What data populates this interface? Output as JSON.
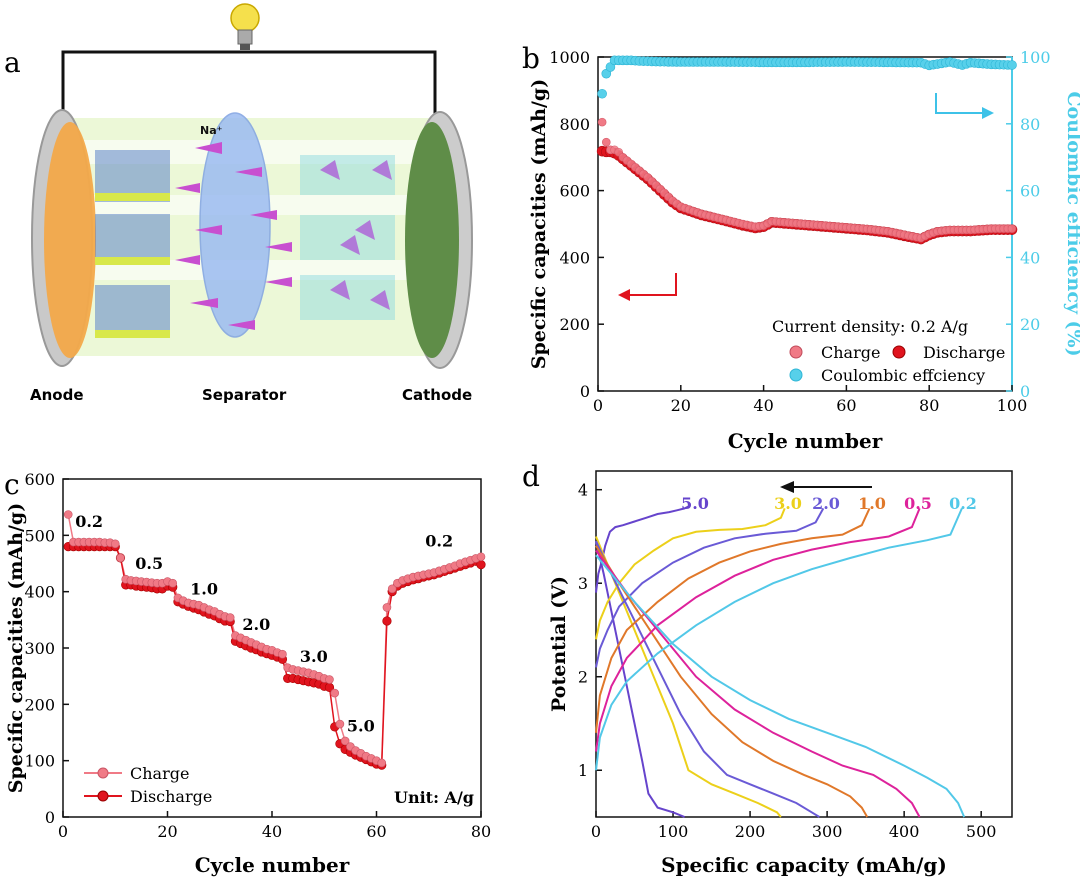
{
  "colors": {
    "charge": "#f07a86",
    "discharge": "#e0141e",
    "ce": "#57d0ea",
    "ce_axis": "#4ccce8",
    "arrow_red": "#e0141e",
    "arrow_cyan": "#3dc2e8",
    "curve_5.0": "#6644cc",
    "curve_3.0": "#ecd01a",
    "curve_2.0": "#6a5ad6",
    "curve_1.0": "#e0782a",
    "curve_0.5": "#dd229b",
    "curve_0.2": "#52c8e8"
  },
  "panel_a": {
    "label": "a",
    "anode_label": "Anode",
    "separator_label": "Separator",
    "cathode_label": "Cathode",
    "ion_label": "Na⁺",
    "icons": [
      "light-bulb-icon"
    ]
  },
  "chart_data": [
    {
      "panel": "b",
      "type": "scatter",
      "title": "",
      "xlabel": "Cycle number",
      "ylabel": "Specific capacities (mAh/g)",
      "y2label": "Coulombic efficiency (%)",
      "xlim": [
        0,
        100
      ],
      "ylim": [
        0,
        1000
      ],
      "y2lim": [
        0,
        100
      ],
      "xticks": [
        0,
        20,
        40,
        60,
        80,
        100
      ],
      "yticks": [
        0,
        200,
        400,
        600,
        800,
        1000
      ],
      "y2ticks": [
        0,
        20,
        40,
        60,
        80,
        100
      ],
      "annotation": "Current density: 0.2 A/g",
      "legend": [
        "Charge",
        "Discharge",
        "Coulombic effciency"
      ],
      "legend_position": "bottom-right",
      "series": [
        {
          "name": "Charge",
          "axis": "left",
          "x": [
            1,
            2,
            3,
            4,
            5,
            6,
            8,
            10,
            12,
            15,
            18,
            20,
            25,
            30,
            35,
            38,
            40,
            42,
            45,
            50,
            55,
            60,
            65,
            70,
            75,
            78,
            80,
            82,
            85,
            90,
            95,
            100
          ],
          "values": [
            805,
            745,
            722,
            722,
            715,
            700,
            680,
            660,
            640,
            605,
            570,
            552,
            530,
            515,
            500,
            492,
            495,
            508,
            505,
            500,
            495,
            490,
            485,
            478,
            465,
            458,
            470,
            478,
            482,
            482,
            486,
            486
          ]
        },
        {
          "name": "Discharge",
          "axis": "left",
          "x": [
            1,
            2,
            3,
            4,
            5,
            6,
            8,
            10,
            12,
            15,
            18,
            20,
            25,
            30,
            35,
            38,
            40,
            42,
            45,
            50,
            55,
            60,
            65,
            70,
            75,
            78,
            80,
            82,
            85,
            90,
            95,
            100
          ],
          "values": [
            718,
            716,
            716,
            712,
            705,
            695,
            675,
            655,
            635,
            600,
            565,
            548,
            527,
            512,
            496,
            488,
            492,
            505,
            502,
            497,
            492,
            487,
            482,
            475,
            462,
            455,
            467,
            475,
            479,
            479,
            483,
            483
          ]
        },
        {
          "name": "Coulombic effciency",
          "axis": "right",
          "x": [
            1,
            2,
            3,
            4,
            5,
            6,
            8,
            10,
            15,
            20,
            30,
            40,
            50,
            60,
            70,
            78,
            80,
            85,
            88,
            90,
            95,
            100
          ],
          "values": [
            89,
            95,
            97,
            99,
            99,
            99,
            99,
            98.8,
            98.6,
            98.5,
            98.5,
            98.4,
            98.4,
            98.5,
            98.4,
            98.3,
            97.5,
            98.5,
            97.6,
            98.3,
            97.8,
            97.6
          ]
        }
      ]
    },
    {
      "panel": "c",
      "type": "line",
      "title": "",
      "xlabel": "Cycle number",
      "ylabel": "Specific capacities (mAh/g)",
      "xlim": [
        0,
        80
      ],
      "ylim": [
        0,
        600
      ],
      "xticks": [
        0,
        20,
        40,
        60,
        80
      ],
      "yticks": [
        0,
        100,
        200,
        300,
        400,
        500,
        600
      ],
      "annotation": "Unit: A/g",
      "rate_labels": [
        {
          "text": "0.2",
          "x": 5,
          "y": 515
        },
        {
          "text": "0.5",
          "x": 16.5,
          "y": 440
        },
        {
          "text": "1.0",
          "x": 27,
          "y": 395
        },
        {
          "text": "2.0",
          "x": 37,
          "y": 332
        },
        {
          "text": "3.0",
          "x": 48,
          "y": 275
        },
        {
          "text": "5.0",
          "x": 57,
          "y": 152
        },
        {
          "text": "0.2",
          "x": 72,
          "y": 480
        }
      ],
      "legend": [
        "Charge",
        "Discharge"
      ],
      "legend_position": "bottom-left",
      "series": [
        {
          "name": "Charge",
          "x": [
            1,
            2,
            3,
            4,
            5,
            6,
            7,
            8,
            9,
            10,
            11,
            12,
            13,
            14,
            15,
            16,
            17,
            18,
            19,
            20,
            21,
            22,
            23,
            24,
            25,
            26,
            27,
            28,
            29,
            30,
            31,
            32,
            33,
            34,
            35,
            36,
            37,
            38,
            39,
            40,
            41,
            42,
            43,
            44,
            45,
            46,
            47,
            48,
            49,
            50,
            51,
            52,
            53,
            54,
            55,
            56,
            57,
            58,
            59,
            60,
            61,
            62,
            63,
            64,
            65,
            66,
            67,
            68,
            69,
            70,
            71,
            72,
            73,
            74,
            75,
            76,
            77,
            78,
            79,
            80
          ],
          "values": [
            537,
            488,
            488,
            488,
            488,
            488,
            488,
            487,
            487,
            485,
            460,
            422,
            420,
            419,
            418,
            417,
            416,
            415,
            415,
            418,
            415,
            389,
            384,
            380,
            378,
            376,
            372,
            368,
            365,
            360,
            356,
            354,
            322,
            318,
            314,
            310,
            306,
            302,
            298,
            296,
            292,
            289,
            265,
            262,
            260,
            258,
            256,
            253,
            250,
            246,
            244,
            220,
            165,
            135,
            125,
            118,
            113,
            108,
            104,
            100,
            96,
            372,
            405,
            415,
            420,
            423,
            426,
            428,
            430,
            432,
            434,
            437,
            440,
            443,
            446,
            450,
            453,
            456,
            459,
            462
          ]
        },
        {
          "name": "Discharge",
          "x": [
            1,
            2,
            3,
            4,
            5,
            6,
            7,
            8,
            9,
            10,
            11,
            12,
            13,
            14,
            15,
            16,
            17,
            18,
            19,
            20,
            21,
            22,
            23,
            24,
            25,
            26,
            27,
            28,
            29,
            30,
            31,
            32,
            33,
            34,
            35,
            36,
            37,
            38,
            39,
            40,
            41,
            42,
            43,
            44,
            45,
            46,
            47,
            48,
            49,
            50,
            51,
            52,
            53,
            54,
            55,
            56,
            57,
            58,
            59,
            60,
            61,
            62,
            63,
            64,
            65,
            66,
            67,
            68,
            69,
            70,
            71,
            72,
            73,
            74,
            75,
            76,
            77,
            78,
            79,
            80
          ],
          "values": [
            480,
            480,
            480,
            480,
            480,
            480,
            480,
            480,
            480,
            480,
            460,
            412,
            412,
            410,
            409,
            408,
            407,
            405,
            405,
            410,
            408,
            382,
            378,
            374,
            371,
            368,
            364,
            360,
            357,
            352,
            348,
            347,
            312,
            308,
            304,
            300,
            297,
            293,
            290,
            287,
            284,
            280,
            246,
            246,
            244,
            242,
            240,
            238,
            236,
            232,
            230,
            160,
            130,
            120,
            115,
            110,
            106,
            102,
            98,
            94,
            92,
            348,
            400,
            410,
            415,
            418,
            421,
            423,
            426,
            428,
            430,
            433,
            436,
            439,
            442,
            445,
            448,
            451,
            454,
            448
          ]
        }
      ]
    },
    {
      "panel": "d",
      "type": "line",
      "title": "",
      "xlabel": "Specific capacity (mAh/g)",
      "ylabel": "Potential (V)",
      "xlim": [
        0,
        540
      ],
      "ylim": [
        0.5,
        4.2
      ],
      "xticks": [
        0,
        100,
        200,
        300,
        400,
        500
      ],
      "yticks": [
        1,
        2,
        3,
        4
      ],
      "annotation": "←",
      "series": [
        {
          "name": "5.0",
          "colorKey": "curve_5.0",
          "charge": {
            "x": [
              0,
              3,
              8,
              12,
              18,
              25,
              35,
              50,
              65,
              80,
              95,
              105,
              115,
              120
            ],
            "values": [
              2.9,
              3.1,
              3.25,
              3.4,
              3.55,
              3.6,
              3.62,
              3.66,
              3.7,
              3.74,
              3.76,
              3.78,
              3.8,
              3.82
            ]
          },
          "discharge": {
            "x": [
              0,
              10,
              20,
              30,
              40,
              50,
              60,
              68,
              80,
              100,
              115
            ],
            "values": [
              3.45,
              3.1,
              2.7,
              2.3,
              1.9,
              1.5,
              1.1,
              0.75,
              0.6,
              0.55,
              0.5
            ]
          }
        },
        {
          "name": "3.0",
          "colorKey": "curve_3.0",
          "charge": {
            "x": [
              0,
              5,
              15,
              30,
              50,
              75,
              100,
              130,
              160,
              190,
              220,
              240,
              245
            ],
            "values": [
              2.4,
              2.6,
              2.8,
              3.0,
              3.2,
              3.35,
              3.48,
              3.55,
              3.57,
              3.58,
              3.62,
              3.7,
              3.8
            ]
          },
          "discharge": {
            "x": [
              0,
              20,
              40,
              60,
              80,
              100,
              120,
              150,
              180,
              210,
              235,
              240
            ],
            "values": [
              3.5,
              3.1,
              2.7,
              2.3,
              1.9,
              1.5,
              1.0,
              0.85,
              0.75,
              0.65,
              0.55,
              0.5
            ]
          }
        },
        {
          "name": "2.0",
          "colorKey": "curve_2.0",
          "charge": {
            "x": [
              0,
              5,
              15,
              30,
              60,
              100,
              140,
              180,
              220,
              260,
              285,
              295
            ],
            "values": [
              2.1,
              2.3,
              2.5,
              2.75,
              3.0,
              3.22,
              3.38,
              3.48,
              3.53,
              3.56,
              3.65,
              3.8
            ]
          },
          "discharge": {
            "x": [
              0,
              20,
              50,
              80,
              110,
              140,
              170,
              200,
              230,
              260,
              280,
              290
            ],
            "values": [
              3.45,
              3.1,
              2.6,
              2.1,
              1.6,
              1.2,
              0.95,
              0.85,
              0.75,
              0.65,
              0.55,
              0.5
            ]
          }
        },
        {
          "name": "1.0",
          "colorKey": "curve_1.0",
          "charge": {
            "x": [
              0,
              5,
              20,
              40,
              80,
              120,
              160,
              200,
              240,
              280,
              320,
              345,
              355
            ],
            "values": [
              1.4,
              1.8,
              2.2,
              2.5,
              2.8,
              3.05,
              3.22,
              3.34,
              3.42,
              3.48,
              3.52,
              3.62,
              3.8
            ]
          },
          "discharge": {
            "x": [
              0,
              30,
              70,
              110,
              150,
              190,
              230,
              270,
              300,
              330,
              345,
              352
            ],
            "values": [
              3.4,
              3.0,
              2.5,
              2.0,
              1.6,
              1.3,
              1.1,
              0.95,
              0.85,
              0.72,
              0.6,
              0.5
            ]
          }
        },
        {
          "name": "0.5",
          "colorKey": "curve_0.5",
          "charge": {
            "x": [
              0,
              5,
              20,
              40,
              80,
              130,
              180,
              230,
              280,
              330,
              380,
              410,
              420
            ],
            "values": [
              1.2,
              1.5,
              1.9,
              2.2,
              2.55,
              2.85,
              3.08,
              3.25,
              3.36,
              3.44,
              3.5,
              3.6,
              3.8
            ]
          },
          "discharge": {
            "x": [
              0,
              40,
              80,
              130,
              180,
              230,
              280,
              320,
              360,
              390,
              410,
              420
            ],
            "values": [
              3.35,
              2.9,
              2.5,
              2.0,
              1.65,
              1.4,
              1.2,
              1.05,
              0.95,
              0.8,
              0.65,
              0.5
            ]
          }
        },
        {
          "name": "0.2",
          "colorKey": "curve_0.2",
          "charge": {
            "x": [
              0,
              5,
              20,
              40,
              80,
              130,
              180,
              230,
              280,
              330,
              380,
              430,
              460,
              475
            ],
            "values": [
              1.0,
              1.35,
              1.7,
              1.95,
              2.25,
              2.55,
              2.8,
              3.0,
              3.15,
              3.27,
              3.38,
              3.46,
              3.52,
              3.8
            ]
          },
          "discharge": {
            "x": [
              0,
              50,
              100,
              150,
              200,
              250,
              300,
              350,
              400,
              430,
              455,
              470,
              478
            ],
            "values": [
              3.3,
              2.8,
              2.35,
              2.0,
              1.75,
              1.55,
              1.4,
              1.25,
              1.05,
              0.92,
              0.8,
              0.65,
              0.5
            ]
          }
        }
      ]
    }
  ]
}
